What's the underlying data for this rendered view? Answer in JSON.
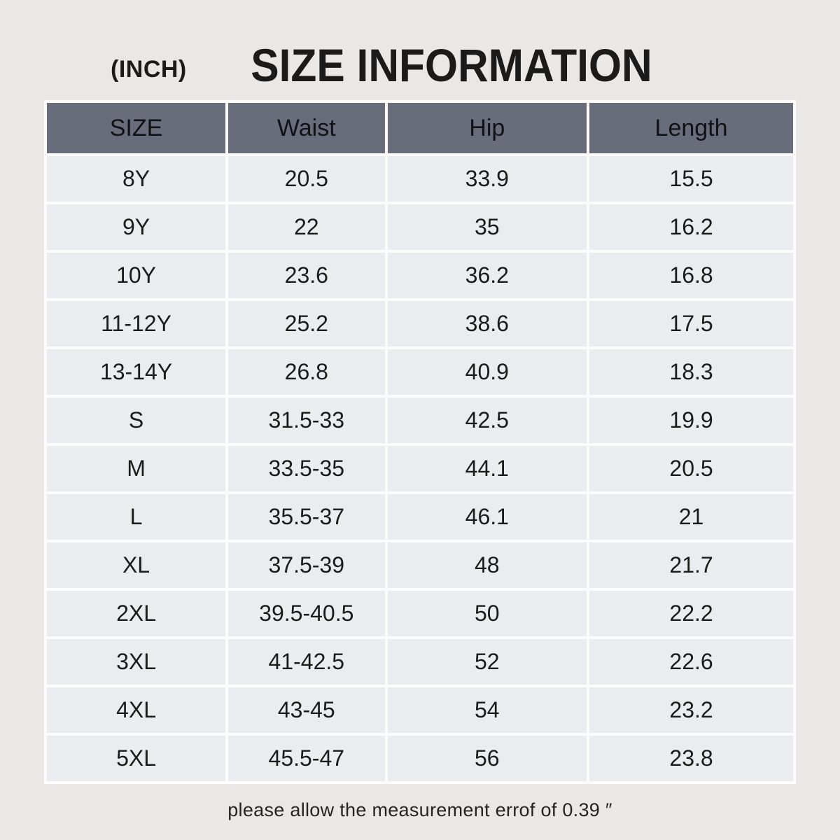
{
  "page": {
    "unit_label": "(INCH)",
    "title": "SIZE INFORMATION",
    "footer_note": "please allow the measurement errof of 0.39 ″"
  },
  "colors": {
    "page_bg": "#e9e8e7",
    "header_bg": "#696c7a",
    "cell_bg": "#ebecef",
    "cell_gap": "#fcfcfc",
    "text": "#1b1b1b"
  },
  "chart_data": {
    "type": "table",
    "title": "SIZE INFORMATION",
    "unit": "INCH",
    "columns": [
      "SIZE",
      "Waist",
      "Hip",
      "Length"
    ],
    "rows": [
      {
        "size": "8Y",
        "waist": "20.5",
        "hip": "33.9",
        "length": "15.5"
      },
      {
        "size": "9Y",
        "waist": "22",
        "hip": "35",
        "length": "16.2"
      },
      {
        "size": "10Y",
        "waist": "23.6",
        "hip": "36.2",
        "length": "16.8"
      },
      {
        "size": "11-12Y",
        "waist": "25.2",
        "hip": "38.6",
        "length": "17.5"
      },
      {
        "size": "13-14Y",
        "waist": "26.8",
        "hip": "40.9",
        "length": "18.3"
      },
      {
        "size": "S",
        "waist": "31.5-33",
        "hip": "42.5",
        "length": "19.9"
      },
      {
        "size": "M",
        "waist": "33.5-35",
        "hip": "44.1",
        "length": "20.5"
      },
      {
        "size": "L",
        "waist": "35.5-37",
        "hip": "46.1",
        "length": "21"
      },
      {
        "size": "XL",
        "waist": "37.5-39",
        "hip": "48",
        "length": "21.7"
      },
      {
        "size": "2XL",
        "waist": "39.5-40.5",
        "hip": "50",
        "length": "22.2"
      },
      {
        "size": "3XL",
        "waist": "41-42.5",
        "hip": "52",
        "length": "22.6"
      },
      {
        "size": "4XL",
        "waist": "43-45",
        "hip": "54",
        "length": "23.2"
      },
      {
        "size": "5XL",
        "waist": "45.5-47",
        "hip": "56",
        "length": "23.8"
      }
    ]
  }
}
